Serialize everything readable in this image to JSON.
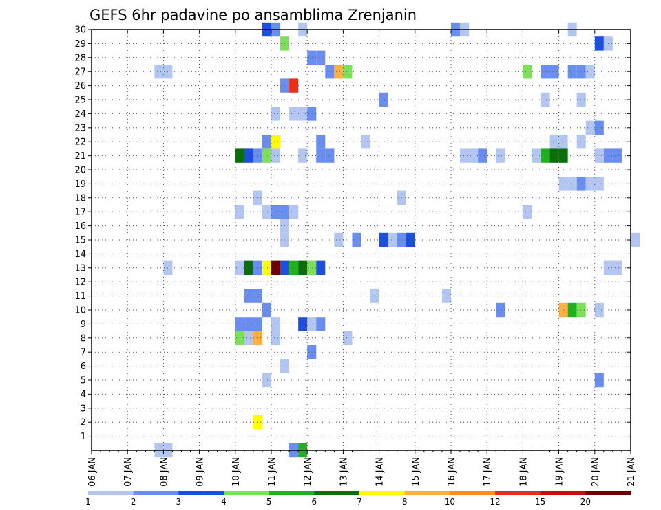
{
  "chart_data": {
    "type": "heatmap",
    "title": "GEFS 6hr padavine po ansamblima Zrenjanin",
    "xlabel": "",
    "ylabel": "",
    "x_tick_labels": [
      "06 JAN",
      "07 JAN",
      "08 JAN",
      "09 JAN",
      "10 JAN",
      "11 JAN",
      "12 JAN",
      "13 JAN",
      "14 JAN",
      "15 JAN",
      "16 JAN",
      "17 JAN",
      "18 JAN",
      "19 JAN",
      "20 JAN",
      "21 JAN"
    ],
    "y_tick_labels": [
      "1",
      "2",
      "3",
      "4",
      "5",
      "6",
      "7",
      "8",
      "9",
      "10",
      "11",
      "12",
      "13",
      "14",
      "15",
      "16",
      "17",
      "18",
      "19",
      "20",
      "21",
      "22",
      "23",
      "24",
      "25",
      "26",
      "27",
      "28",
      "29",
      "30"
    ],
    "x_unit": "6-hour step from 06 JAN 00Z",
    "y_unit": "ensemble member",
    "grid": true,
    "colorbar": {
      "labels": [
        "1",
        "2",
        "3",
        "4",
        "5",
        "6",
        "7",
        "8",
        "10",
        "12",
        "15",
        "20"
      ],
      "colors": [
        "#b3c6f2",
        "#6a8ef0",
        "#1c4ee0",
        "#7ee05a",
        "#20b020",
        "#0a6e0a",
        "#ffff00",
        "#ffb040",
        "#ff8a20",
        "#e83018",
        "#c01010",
        "#6a0000"
      ]
    },
    "cells": [
      {
        "m": 30,
        "s": 19,
        "c": 3
      },
      {
        "m": 30,
        "s": 20,
        "c": 2
      },
      {
        "m": 30,
        "s": 23,
        "c": 1
      },
      {
        "m": 30,
        "s": 40,
        "c": 2
      },
      {
        "m": 30,
        "s": 41,
        "c": 1
      },
      {
        "m": 30,
        "s": 53,
        "c": 1
      },
      {
        "m": 29,
        "s": 21,
        "c": 4
      },
      {
        "m": 29,
        "s": 56,
        "c": 3
      },
      {
        "m": 29,
        "s": 57,
        "c": 1
      },
      {
        "m": 28,
        "s": 24,
        "c": 2
      },
      {
        "m": 28,
        "s": 25,
        "c": 2
      },
      {
        "m": 27,
        "s": 7,
        "c": 1
      },
      {
        "m": 27,
        "s": 8,
        "c": 1
      },
      {
        "m": 27,
        "s": 26,
        "c": 2
      },
      {
        "m": 27,
        "s": 27,
        "c": 8
      },
      {
        "m": 27,
        "s": 28,
        "c": 4
      },
      {
        "m": 27,
        "s": 48,
        "c": 4
      },
      {
        "m": 27,
        "s": 50,
        "c": 2
      },
      {
        "m": 27,
        "s": 51,
        "c": 2
      },
      {
        "m": 27,
        "s": 53,
        "c": 2
      },
      {
        "m": 27,
        "s": 54,
        "c": 2
      },
      {
        "m": 27,
        "s": 55,
        "c": 1
      },
      {
        "m": 26,
        "s": 21,
        "c": 2
      },
      {
        "m": 26,
        "s": 22,
        "c": 10
      },
      {
        "m": 25,
        "s": 32,
        "c": 2
      },
      {
        "m": 25,
        "s": 50,
        "c": 1
      },
      {
        "m": 25,
        "s": 54,
        "c": 1
      },
      {
        "m": 24,
        "s": 20,
        "c": 1
      },
      {
        "m": 24,
        "s": 22,
        "c": 1
      },
      {
        "m": 24,
        "s": 23,
        "c": 1
      },
      {
        "m": 24,
        "s": 24,
        "c": 2
      },
      {
        "m": 23,
        "s": 55,
        "c": 1
      },
      {
        "m": 23,
        "s": 56,
        "c": 2
      },
      {
        "m": 22,
        "s": 19,
        "c": 2
      },
      {
        "m": 22,
        "s": 20,
        "c": 7
      },
      {
        "m": 22,
        "s": 25,
        "c": 2
      },
      {
        "m": 22,
        "s": 30,
        "c": 1
      },
      {
        "m": 22,
        "s": 51,
        "c": 1
      },
      {
        "m": 22,
        "s": 52,
        "c": 1
      },
      {
        "m": 22,
        "s": 54,
        "c": 1
      },
      {
        "m": 21,
        "s": 16,
        "c": 6
      },
      {
        "m": 21,
        "s": 17,
        "c": 3
      },
      {
        "m": 21,
        "s": 18,
        "c": 2
      },
      {
        "m": 21,
        "s": 19,
        "c": 4
      },
      {
        "m": 21,
        "s": 20,
        "c": 1
      },
      {
        "m": 21,
        "s": 23,
        "c": 1
      },
      {
        "m": 21,
        "s": 25,
        "c": 2
      },
      {
        "m": 21,
        "s": 26,
        "c": 2
      },
      {
        "m": 21,
        "s": 41,
        "c": 1
      },
      {
        "m": 21,
        "s": 42,
        "c": 1
      },
      {
        "m": 21,
        "s": 43,
        "c": 2
      },
      {
        "m": 21,
        "s": 45,
        "c": 1
      },
      {
        "m": 21,
        "s": 49,
        "c": 1
      },
      {
        "m": 21,
        "s": 50,
        "c": 5
      },
      {
        "m": 21,
        "s": 51,
        "c": 6
      },
      {
        "m": 21,
        "s": 52,
        "c": 6
      },
      {
        "m": 21,
        "s": 56,
        "c": 1
      },
      {
        "m": 21,
        "s": 57,
        "c": 2
      },
      {
        "m": 21,
        "s": 58,
        "c": 2
      },
      {
        "m": 19,
        "s": 52,
        "c": 1
      },
      {
        "m": 19,
        "s": 53,
        "c": 1
      },
      {
        "m": 19,
        "s": 54,
        "c": 2
      },
      {
        "m": 19,
        "s": 55,
        "c": 1
      },
      {
        "m": 19,
        "s": 56,
        "c": 1
      },
      {
        "m": 18,
        "s": 18,
        "c": 1
      },
      {
        "m": 18,
        "s": 34,
        "c": 1
      },
      {
        "m": 17,
        "s": 16,
        "c": 1
      },
      {
        "m": 17,
        "s": 19,
        "c": 1
      },
      {
        "m": 17,
        "s": 20,
        "c": 2
      },
      {
        "m": 17,
        "s": 21,
        "c": 2
      },
      {
        "m": 17,
        "s": 22,
        "c": 1
      },
      {
        "m": 17,
        "s": 48,
        "c": 1
      },
      {
        "m": 16,
        "s": 21,
        "c": 1
      },
      {
        "m": 15,
        "s": 21,
        "c": 1
      },
      {
        "m": 15,
        "s": 27,
        "c": 1
      },
      {
        "m": 15,
        "s": 29,
        "c": 2
      },
      {
        "m": 15,
        "s": 32,
        "c": 3
      },
      {
        "m": 15,
        "s": 33,
        "c": 1
      },
      {
        "m": 15,
        "s": 34,
        "c": 2
      },
      {
        "m": 15,
        "s": 35,
        "c": 3
      },
      {
        "m": 15,
        "s": 60,
        "c": 1
      },
      {
        "m": 13,
        "s": 8,
        "c": 1
      },
      {
        "m": 13,
        "s": 16,
        "c": 1
      },
      {
        "m": 13,
        "s": 17,
        "c": 6
      },
      {
        "m": 13,
        "s": 18,
        "c": 2
      },
      {
        "m": 13,
        "s": 19,
        "c": 7
      },
      {
        "m": 13,
        "s": 20,
        "c": 12
      },
      {
        "m": 13,
        "s": 21,
        "c": 3
      },
      {
        "m": 13,
        "s": 22,
        "c": 5
      },
      {
        "m": 13,
        "s": 23,
        "c": 6
      },
      {
        "m": 13,
        "s": 24,
        "c": 4
      },
      {
        "m": 13,
        "s": 25,
        "c": 3
      },
      {
        "m": 13,
        "s": 57,
        "c": 1
      },
      {
        "m": 13,
        "s": 58,
        "c": 1
      },
      {
        "m": 11,
        "s": 17,
        "c": 2
      },
      {
        "m": 11,
        "s": 18,
        "c": 2
      },
      {
        "m": 11,
        "s": 31,
        "c": 1
      },
      {
        "m": 11,
        "s": 39,
        "c": 1
      },
      {
        "m": 10,
        "s": 19,
        "c": 2
      },
      {
        "m": 10,
        "s": 45,
        "c": 2
      },
      {
        "m": 10,
        "s": 52,
        "c": 8
      },
      {
        "m": 10,
        "s": 53,
        "c": 5
      },
      {
        "m": 10,
        "s": 54,
        "c": 4
      },
      {
        "m": 10,
        "s": 56,
        "c": 1
      },
      {
        "m": 9,
        "s": 16,
        "c": 2
      },
      {
        "m": 9,
        "s": 17,
        "c": 2
      },
      {
        "m": 9,
        "s": 18,
        "c": 2
      },
      {
        "m": 9,
        "s": 20,
        "c": 1
      },
      {
        "m": 9,
        "s": 23,
        "c": 3
      },
      {
        "m": 9,
        "s": 24,
        "c": 1
      },
      {
        "m": 9,
        "s": 25,
        "c": 2
      },
      {
        "m": 8,
        "s": 16,
        "c": 4
      },
      {
        "m": 8,
        "s": 17,
        "c": 1
      },
      {
        "m": 8,
        "s": 18,
        "c": 8
      },
      {
        "m": 8,
        "s": 20,
        "c": 1
      },
      {
        "m": 8,
        "s": 28,
        "c": 1
      },
      {
        "m": 7,
        "s": 24,
        "c": 2
      },
      {
        "m": 6,
        "s": 21,
        "c": 1
      },
      {
        "m": 5,
        "s": 19,
        "c": 1
      },
      {
        "m": 5,
        "s": 56,
        "c": 2
      },
      {
        "m": 2,
        "s": 18,
        "c": 7
      },
      {
        "m": 0,
        "s": 7,
        "c": 1
      },
      {
        "m": 0,
        "s": 8,
        "c": 1
      },
      {
        "m": 0,
        "s": 22,
        "c": 2
      },
      {
        "m": 0,
        "s": 23,
        "c": 5
      }
    ]
  }
}
